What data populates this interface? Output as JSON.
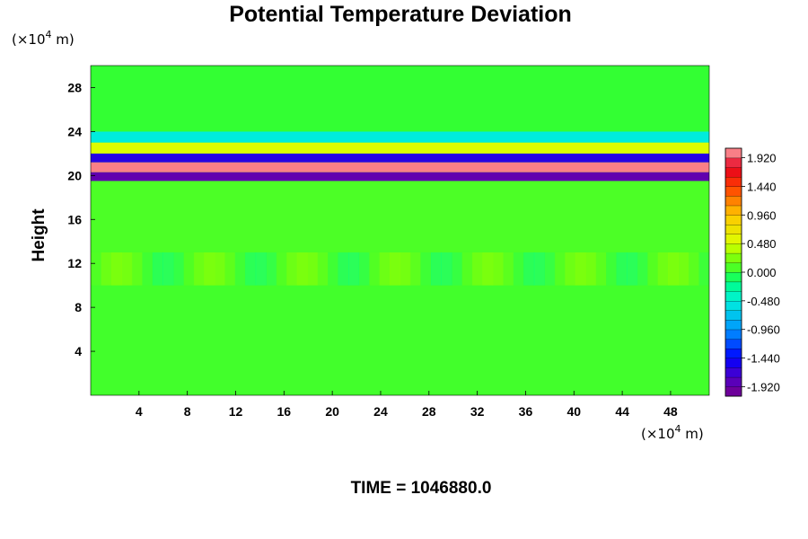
{
  "chart_data": {
    "type": "heatmap",
    "title": "Potential Temperature Deviation",
    "ylabel": "Height",
    "xlabel": "",
    "x_unit_prefix": "(×10",
    "x_unit_exp": "4",
    "x_unit_suffix": " m)",
    "y_unit_prefix": "(×10",
    "y_unit_exp": "4",
    "y_unit_suffix": " m)",
    "xlim": [
      0,
      51.2
    ],
    "ylim": [
      0,
      30
    ],
    "xticks": [
      4,
      8,
      12,
      16,
      20,
      24,
      28,
      32,
      36,
      40,
      44,
      48
    ],
    "yticks": [
      4,
      8,
      12,
      16,
      20,
      24,
      28
    ],
    "colorbar": {
      "min": -2.08,
      "max": 2.08,
      "step": 0.16,
      "ticks": [
        "1.920",
        "1.440",
        "0.960",
        "0.480",
        "0.000",
        "-0.480",
        "-0.960",
        "-1.440",
        "-1.920"
      ]
    },
    "field_description_rows": [
      {
        "height": [
          0,
          10
        ],
        "value": 0.05
      },
      {
        "height": [
          10,
          13
        ],
        "value": 0.15
      },
      {
        "height": [
          13,
          19.5
        ],
        "value": 0.08
      },
      {
        "height": [
          19.5,
          20.3
        ],
        "value": -1.9
      },
      {
        "height": [
          20.3,
          21.2
        ],
        "value": 2.0
      },
      {
        "height": [
          21.2,
          22.0
        ],
        "value": -1.6
      },
      {
        "height": [
          22.0,
          23.0
        ],
        "value": 0.5
      },
      {
        "height": [
          23.0,
          24.0
        ],
        "value": -0.5
      },
      {
        "height": [
          24.0,
          30
        ],
        "value": 0.0
      }
    ],
    "time_label": "TIME = 1046880.0"
  },
  "colors": {
    "background": "#ffffff",
    "zero": "#33ff33"
  }
}
